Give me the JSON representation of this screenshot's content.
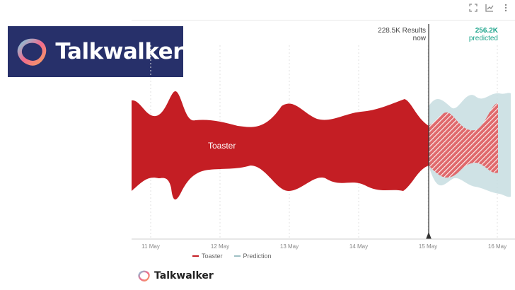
{
  "brand": {
    "name": "Talkwalker",
    "footer_name": "Talkwalker",
    "colors": {
      "navy": "#27306a",
      "pink": "#f16b8d",
      "cyan": "#6fd6ea",
      "orange": "#f5a55a"
    }
  },
  "toolbar": {
    "icons": [
      "fullscreen-icon",
      "chart-type-icon",
      "more-menu-icon"
    ]
  },
  "chart_data": {
    "type": "area",
    "subtype": "streamgraph",
    "x_ticks": [
      "11 May",
      "12 May",
      "13 May",
      "14 May",
      "15 May",
      "16 May"
    ],
    "series": [
      {
        "name": "Toaster",
        "color": "#c41e24"
      },
      {
        "name": "Prediction",
        "color": "#b9d3d6"
      }
    ],
    "current_marker": {
      "date": "15 May",
      "value_label": "228.5K Results",
      "sub_label": "now"
    },
    "prediction_marker": {
      "date": "16 May",
      "value_label": "256.2K",
      "sub_label": "predicted"
    },
    "legend": [
      {
        "name": "Toaster",
        "color": "#c41e24"
      },
      {
        "name": "Prediction",
        "color": "#b9d3d6"
      }
    ],
    "legend_position": "bottom",
    "grid": "vertical dashed",
    "y_axis": "hidden"
  }
}
